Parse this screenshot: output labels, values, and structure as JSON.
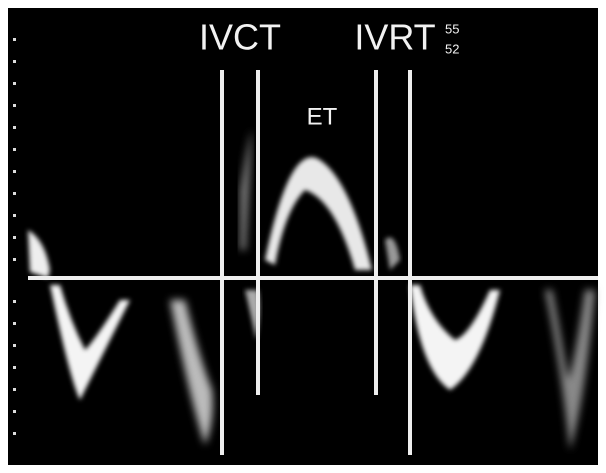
{
  "labels": {
    "ivct": "IVCT",
    "ivrt": "IVRT",
    "et": "ET",
    "top_number": "55",
    "bottom_number": "52"
  }
}
